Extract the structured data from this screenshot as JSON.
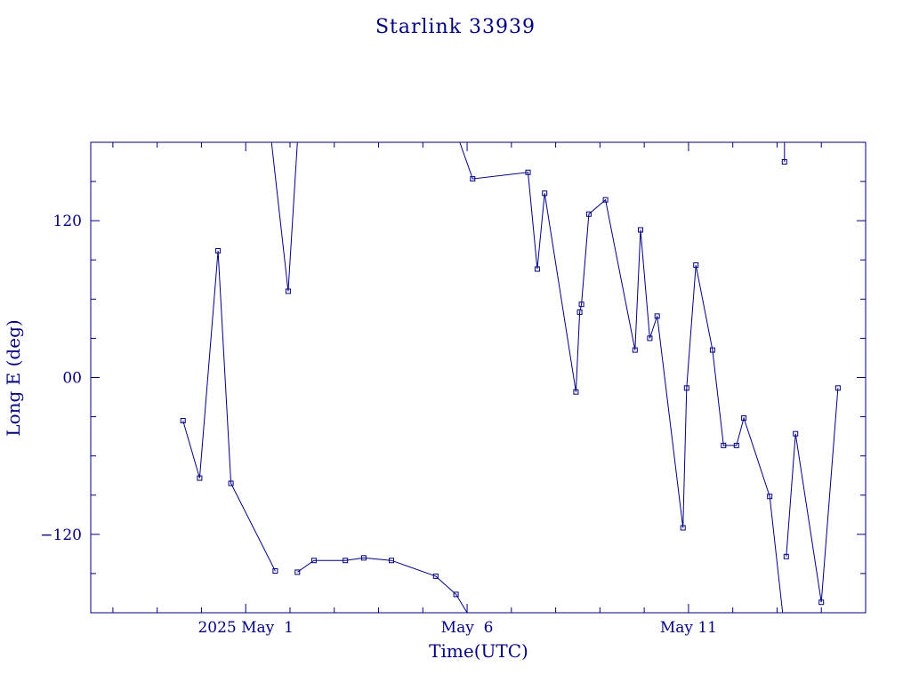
{
  "chart_data": {
    "type": "line",
    "title": "Starlink 33939",
    "xlabel": "Time(UTC)",
    "ylabel": "Long E (deg)",
    "y_range": [
      -180,
      180
    ],
    "y_ticks": [
      {
        "value": 120,
        "label": "120"
      },
      {
        "value": 0,
        "label": "00"
      },
      {
        "value": -120,
        "label": "−120"
      }
    ],
    "x_range": [
      "2025-04-27T12:00",
      "2025-05-15T00:00"
    ],
    "x_ticks": [
      {
        "value": "2025-05-01T00:00",
        "label": "2025 May  1"
      },
      {
        "value": "2025-05-06T00:00",
        "label": "May  6"
      },
      {
        "value": "2025-05-11T00:00",
        "label": "May 11"
      }
    ],
    "grid": false,
    "color": "#000080",
    "series": [
      {
        "points": [
          {
            "x": "2025-04-29T14:00",
            "y": -33
          },
          {
            "x": "2025-04-29T23:00",
            "y": -77
          },
          {
            "x": "2025-04-30T09:00",
            "y": 97
          },
          {
            "x": "2025-04-30T16:00",
            "y": -81
          },
          {
            "x": "2025-05-01T16:00",
            "y": -148
          }
        ]
      },
      {
        "points": [
          {
            "x": "2025-05-01T14:00",
            "y": 180
          },
          {
            "x": "2025-05-01T23:00",
            "y": 66
          },
          {
            "x": "2025-05-02T04:00",
            "y": 180
          }
        ]
      },
      {
        "points": [
          {
            "x": "2025-05-02T04:00",
            "y": -149
          },
          {
            "x": "2025-05-02T13:00",
            "y": -140
          },
          {
            "x": "2025-05-03T06:00",
            "y": -140
          },
          {
            "x": "2025-05-03T16:00",
            "y": -138
          },
          {
            "x": "2025-05-04T07:00",
            "y": -140
          },
          {
            "x": "2025-05-05T07:00",
            "y": -152
          },
          {
            "x": "2025-05-05T18:00",
            "y": -166
          },
          {
            "x": "2025-05-06T00:00",
            "y": -180
          }
        ]
      },
      {
        "points": [
          {
            "x": "2025-05-05T20:00",
            "y": 180
          },
          {
            "x": "2025-05-06T03:00",
            "y": 152
          },
          {
            "x": "2025-05-07T09:00",
            "y": 157
          },
          {
            "x": "2025-05-07T14:00",
            "y": 83
          },
          {
            "x": "2025-05-07T18:00",
            "y": 141
          },
          {
            "x": "2025-05-08T11:00",
            "y": -11
          },
          {
            "x": "2025-05-08T13:00",
            "y": 50
          },
          {
            "x": "2025-05-08T14:00",
            "y": 56
          },
          {
            "x": "2025-05-08T18:00",
            "y": 125
          },
          {
            "x": "2025-05-09T03:00",
            "y": 136
          },
          {
            "x": "2025-05-09T19:00",
            "y": 21
          },
          {
            "x": "2025-05-09T22:00",
            "y": 113
          },
          {
            "x": "2025-05-10T03:00",
            "y": 30
          },
          {
            "x": "2025-05-10T07:00",
            "y": 47
          },
          {
            "x": "2025-05-10T21:00",
            "y": -115
          },
          {
            "x": "2025-05-10T23:00",
            "y": -8
          },
          {
            "x": "2025-05-11T04:00",
            "y": 86
          },
          {
            "x": "2025-05-11T13:00",
            "y": 21
          },
          {
            "x": "2025-05-11T19:00",
            "y": -52
          },
          {
            "x": "2025-05-12T02:00",
            "y": -52
          },
          {
            "x": "2025-05-12T06:00",
            "y": -31
          },
          {
            "x": "2025-05-12T20:00",
            "y": -91
          },
          {
            "x": "2025-05-13T03:00",
            "y": -180
          }
        ]
      },
      {
        "points": [
          {
            "x": "2025-05-13T04:00",
            "y": 180
          },
          {
            "x": "2025-05-13T04:00",
            "y": 165
          }
        ]
      },
      {
        "points": [
          {
            "x": "2025-05-13T05:00",
            "y": -137
          },
          {
            "x": "2025-05-13T10:00",
            "y": -43
          },
          {
            "x": "2025-05-14T00:00",
            "y": -172
          },
          {
            "x": "2025-05-14T09:00",
            "y": -8
          }
        ]
      }
    ]
  }
}
